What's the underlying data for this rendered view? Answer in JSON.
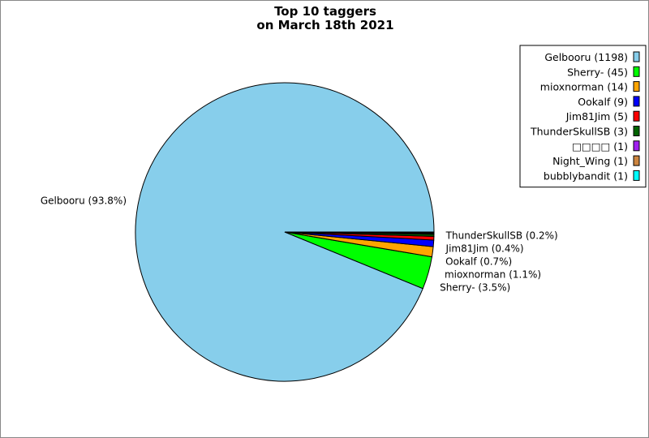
{
  "chart_data": {
    "type": "pie",
    "title": [
      "Top 10 taggers",
      "on March 18th 2021"
    ],
    "legend_placement": "top-right",
    "slices": [
      {
        "name": "Gelbooru",
        "value": 1198,
        "color": "#87ceeb",
        "legend": "Gelbooru (1198)",
        "label": "Gelbooru (93.8%)"
      },
      {
        "name": "Sherry-",
        "value": 45,
        "color": "#00ff00",
        "legend": "Sherry- (45)",
        "label": "Sherry- (3.5%)"
      },
      {
        "name": "mioxnorman",
        "value": 14,
        "color": "#ffa500",
        "legend": "mioxnorman (14)",
        "label": "mioxnorman (1.1%)"
      },
      {
        "name": "Ookalf",
        "value": 9,
        "color": "#0000ff",
        "legend": "Ookalf (9)",
        "label": "Ookalf (0.7%)"
      },
      {
        "name": "Jim81Jim",
        "value": 5,
        "color": "#ff0000",
        "legend": "Jim81Jim (5)",
        "label": "Jim81Jim (0.4%)"
      },
      {
        "name": "ThunderSkullSB",
        "value": 3,
        "color": "#006400",
        "legend": "ThunderSkullSB (3)",
        "label": "ThunderSkullSB (0.2%)"
      },
      {
        "name": "□□□□",
        "value": 1,
        "color": "#a020f0",
        "legend": "□□□□ (1)",
        "label": ""
      },
      {
        "name": "Night_Wing",
        "value": 1,
        "color": "#cd853f",
        "legend": "Night_Wing (1)",
        "label": ""
      },
      {
        "name": "bubblybandit",
        "value": 1,
        "color": "#00ffff",
        "legend": "bubblybandit (1)",
        "label": ""
      }
    ]
  }
}
